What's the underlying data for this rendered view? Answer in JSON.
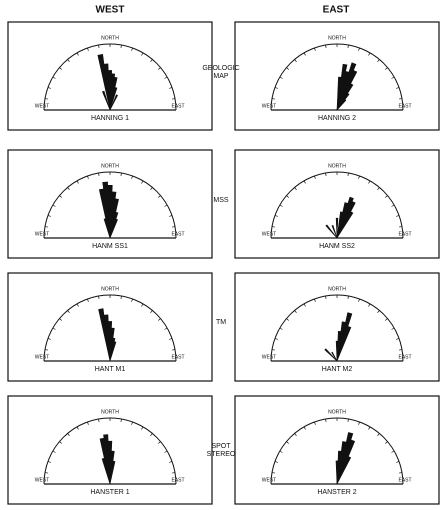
{
  "columns": [
    "WEST",
    "EAST"
  ],
  "rows": [
    "GEOLOGIC MAP",
    "MSS",
    "TM",
    "SPOT STEREO"
  ],
  "chart_data": [
    {
      "type": "rose",
      "title": "HANNING 1",
      "north_label": "NORTH",
      "west_label": "WEST",
      "east_label": "EAST",
      "color": "#111111",
      "x": [
        -10,
        -5,
        0,
        5,
        10,
        15,
        -20,
        25
      ],
      "values": [
        0.85,
        0.7,
        0.6,
        0.55,
        0.5,
        0.35,
        0.3,
        0.25
      ],
      "xlim": [
        -90,
        90
      ],
      "ylim": [
        0,
        1
      ],
      "xticks": [
        -80,
        -70,
        -60,
        -50,
        -40,
        -30,
        -20,
        -10,
        0,
        10,
        20,
        30,
        40,
        50,
        60,
        70,
        80
      ]
    },
    {
      "type": "rose",
      "title": "HANNING 2",
      "north_label": "NORTH",
      "west_label": "WEST",
      "east_label": "EAST",
      "color": "#111111",
      "x": [
        5,
        10,
        15,
        20,
        25,
        30,
        35,
        40
      ],
      "values": [
        0.5,
        0.7,
        0.6,
        0.75,
        0.65,
        0.45,
        0.3,
        0.2
      ],
      "xlim": [
        -90,
        90
      ],
      "ylim": [
        0,
        1
      ],
      "xticks": [
        -80,
        -70,
        -60,
        -50,
        -40,
        -30,
        -20,
        -10,
        0,
        10,
        20,
        30,
        40,
        50,
        60,
        70,
        80
      ]
    },
    {
      "type": "rose",
      "title": "HANM SS1",
      "north_label": "NORTH",
      "west_label": "WEST",
      "east_label": "EAST",
      "color": "#111111",
      "x": [
        -10,
        -5,
        0,
        5,
        10,
        15,
        20,
        -15
      ],
      "values": [
        0.75,
        0.85,
        0.8,
        0.7,
        0.6,
        0.4,
        0.3,
        0.3
      ],
      "xlim": [
        -90,
        90
      ],
      "ylim": [
        0,
        1
      ],
      "xticks": [
        -80,
        -70,
        -60,
        -50,
        -40,
        -30,
        -20,
        -10,
        0,
        10,
        20,
        30,
        40,
        50,
        60,
        70,
        80
      ]
    },
    {
      "type": "rose",
      "title": "HANM SS2",
      "north_label": "NORTH",
      "west_label": "WEST",
      "east_label": "EAST",
      "color": "#111111",
      "x": [
        -40,
        -20,
        0,
        10,
        15,
        20,
        25,
        30
      ],
      "values": [
        0.25,
        0.2,
        0.3,
        0.4,
        0.55,
        0.65,
        0.6,
        0.45
      ],
      "xlim": [
        -90,
        90
      ],
      "ylim": [
        0,
        1
      ],
      "xticks": [
        -80,
        -70,
        -60,
        -50,
        -40,
        -30,
        -20,
        -10,
        0,
        10,
        20,
        30,
        40,
        50,
        60,
        70,
        80
      ]
    },
    {
      "type": "rose",
      "title": "HANT M1",
      "north_label": "NORTH",
      "west_label": "WEST",
      "east_label": "EAST",
      "color": "#111111",
      "x": [
        -10,
        -5,
        0,
        5,
        10,
        15
      ],
      "values": [
        0.8,
        0.7,
        0.6,
        0.5,
        0.35,
        0.3
      ],
      "xlim": [
        -90,
        90
      ],
      "ylim": [
        0,
        1
      ],
      "xticks": [
        -80,
        -70,
        -60,
        -50,
        -40,
        -30,
        -20,
        -10,
        0,
        10,
        20,
        30,
        40,
        50,
        60,
        70,
        80
      ]
    },
    {
      "type": "rose",
      "title": "HANT M2",
      "north_label": "NORTH",
      "west_label": "WEST",
      "east_label": "EAST",
      "color": "#111111",
      "x": [
        -45,
        -30,
        0,
        5,
        10,
        15,
        20
      ],
      "values": [
        0.25,
        0.15,
        0.3,
        0.45,
        0.6,
        0.75,
        0.55
      ],
      "xlim": [
        -90,
        90
      ],
      "ylim": [
        0,
        1
      ],
      "xticks": [
        -80,
        -70,
        -60,
        -50,
        -40,
        -30,
        -20,
        -10,
        0,
        10,
        20,
        30,
        40,
        50,
        60,
        70,
        80
      ]
    },
    {
      "type": "rose",
      "title": "HANSTER 1",
      "north_label": "NORTH",
      "west_label": "WEST",
      "east_label": "EAST",
      "color": "#111111",
      "x": [
        -10,
        -5,
        0,
        5,
        10,
        -15
      ],
      "values": [
        0.7,
        0.75,
        0.65,
        0.5,
        0.35,
        0.4
      ],
      "xlim": [
        -90,
        90
      ],
      "ylim": [
        0,
        1
      ],
      "xticks": [
        -80,
        -70,
        -60,
        -50,
        -40,
        -30,
        -20,
        -10,
        0,
        10,
        20,
        30,
        40,
        50,
        60,
        70,
        80
      ]
    },
    {
      "type": "rose",
      "title": "HANSTER 2",
      "north_label": "NORTH",
      "west_label": "WEST",
      "east_label": "EAST",
      "color": "#111111",
      "x": [
        0,
        5,
        10,
        15,
        20,
        25
      ],
      "values": [
        0.35,
        0.5,
        0.65,
        0.8,
        0.7,
        0.45
      ],
      "xlim": [
        -90,
        90
      ],
      "ylim": [
        0,
        1
      ],
      "xticks": [
        -80,
        -70,
        -60,
        -50,
        -40,
        -30,
        -20,
        -10,
        0,
        10,
        20,
        30,
        40,
        50,
        60,
        70,
        80
      ]
    }
  ]
}
